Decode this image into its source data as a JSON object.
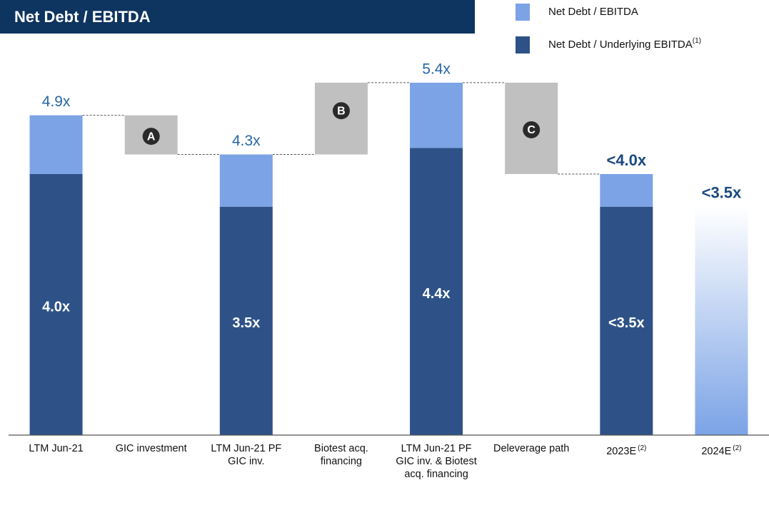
{
  "chart_data": {
    "type": "stacked_waterfall",
    "title": "Net Debt / EBITDA",
    "categories": [
      "LTM Jun-21",
      "GIC investment",
      "LTM Jun-21 PF GIC inv.",
      "Biotest acq. financing",
      "LTM Jun-21 PF GIC inv. & Biotest acq. financing",
      "Deleverage path",
      "2023E",
      "2024E"
    ],
    "category_footnotes": [
      null,
      null,
      null,
      null,
      null,
      null,
      "(2)",
      "(2)"
    ],
    "series": [
      {
        "name": "Net Debt / EBITDA",
        "color": "#7ba3e6",
        "values": [
          0.9,
          null,
          0.8,
          null,
          1.0,
          null,
          0.5,
          null
        ]
      },
      {
        "name": "Net Debt / Underlying EBITDA",
        "footnote": "(1)",
        "color": "#2e5288",
        "values": [
          4.0,
          null,
          3.5,
          null,
          4.4,
          null,
          3.5,
          3.5
        ],
        "value_labels": [
          "4.0x",
          null,
          "3.5x",
          null,
          "4.4x",
          null,
          "<3.5x",
          null
        ]
      }
    ],
    "totals": [
      4.9,
      null,
      4.3,
      null,
      5.4,
      null,
      4.0,
      3.5
    ],
    "total_labels": [
      "4.9x",
      null,
      "4.3x",
      null,
      "5.4x",
      null,
      "<4.0x",
      "<3.5x"
    ],
    "total_label_bold": [
      false,
      false,
      false,
      false,
      false,
      false,
      true,
      true
    ],
    "steps": [
      null,
      -0.6,
      null,
      1.1,
      null,
      -1.4,
      null,
      null
    ],
    "step_labels": [
      null,
      "A",
      null,
      "B",
      null,
      "C",
      null,
      null
    ],
    "step_color": "#c0c0c0",
    "faded": [
      false,
      false,
      false,
      false,
      false,
      false,
      false,
      true
    ],
    "ylim": [
      0,
      6.0
    ]
  }
}
